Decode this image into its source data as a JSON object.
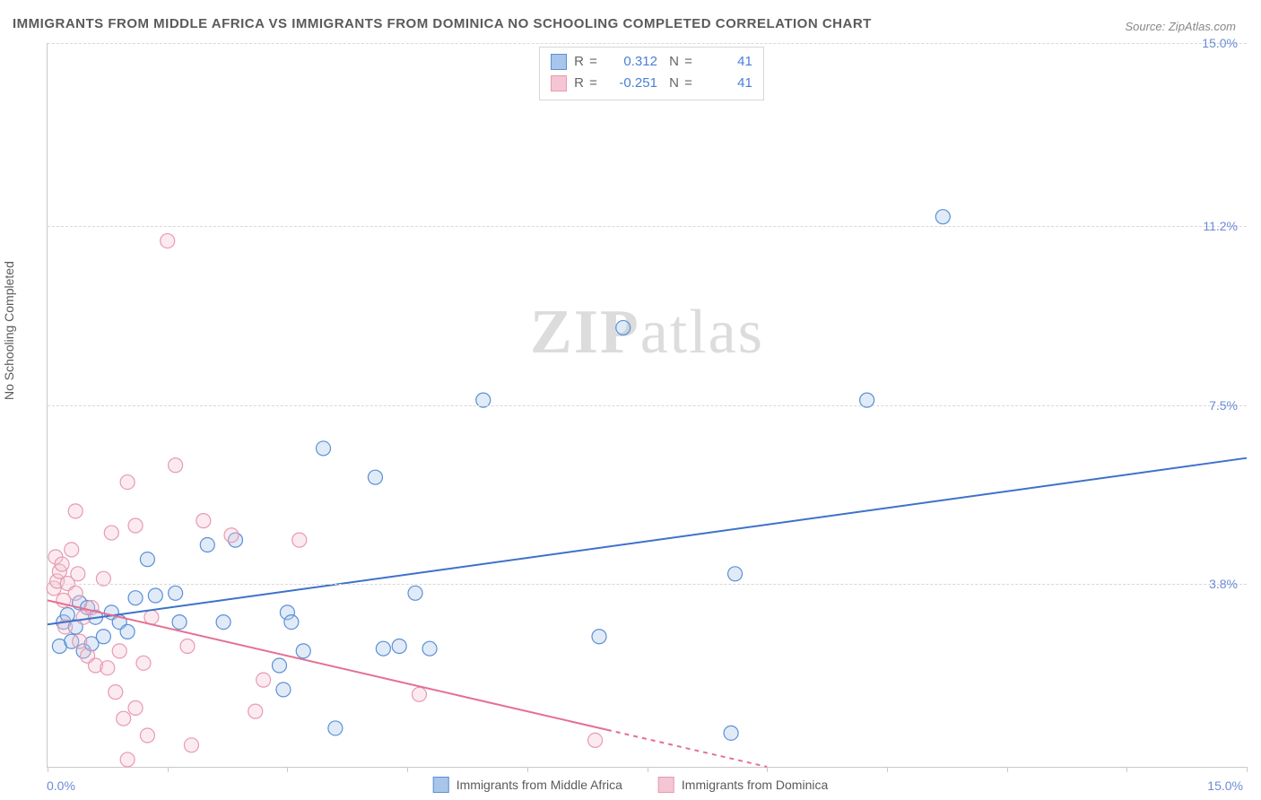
{
  "title": "IMMIGRANTS FROM MIDDLE AFRICA VS IMMIGRANTS FROM DOMINICA NO SCHOOLING COMPLETED CORRELATION CHART",
  "source": "Source: ZipAtlas.com",
  "watermark_text": "ZIPatlas",
  "y_axis_label": "No Schooling Completed",
  "chart": {
    "type": "scatter",
    "background_color": "#ffffff",
    "grid_color": "#d8d8d8",
    "axis_color": "#c9c9c9",
    "tick_label_color": "#6b8bd6",
    "xlim": [
      0,
      15
    ],
    "ylim": [
      0,
      15
    ],
    "x_min_label": "0.0%",
    "x_max_label": "15.0%",
    "y_gridlines": [
      3.8,
      7.5,
      11.2,
      15.0
    ],
    "y_tick_labels": [
      "3.8%",
      "7.5%",
      "11.2%",
      "15.0%"
    ],
    "x_tick_positions": [
      0,
      1.5,
      3.0,
      4.5,
      6.0,
      7.5,
      9.0,
      10.5,
      12.0,
      13.5,
      15.0
    ],
    "marker_radius": 8,
    "marker_fill_opacity": 0.35,
    "marker_stroke_width": 1.2,
    "trend_line_width": 2
  },
  "series": [
    {
      "name": "Immigrants from Middle Africa",
      "color_stroke": "#5b8fd6",
      "color_fill": "#a8c5ea",
      "trend_color": "#3d72c9",
      "r": "0.312",
      "n": "41",
      "trend_start": [
        0.0,
        2.95
      ],
      "trend_end": [
        15.0,
        6.4
      ],
      "trend_dash_after_x": null,
      "points": [
        [
          0.15,
          2.5
        ],
        [
          0.2,
          3.0
        ],
        [
          0.25,
          3.15
        ],
        [
          0.3,
          2.6
        ],
        [
          0.35,
          2.9
        ],
        [
          0.4,
          3.4
        ],
        [
          0.45,
          2.4
        ],
        [
          0.5,
          3.3
        ],
        [
          0.55,
          2.55
        ],
        [
          0.6,
          3.1
        ],
        [
          0.7,
          2.7
        ],
        [
          0.8,
          3.2
        ],
        [
          0.9,
          3.0
        ],
        [
          1.0,
          2.8
        ],
        [
          1.1,
          3.5
        ],
        [
          1.25,
          4.3
        ],
        [
          1.35,
          3.55
        ],
        [
          1.6,
          3.6
        ],
        [
          1.65,
          3.0
        ],
        [
          2.0,
          4.6
        ],
        [
          2.2,
          3.0
        ],
        [
          2.35,
          4.7
        ],
        [
          2.9,
          2.1
        ],
        [
          2.95,
          1.6
        ],
        [
          3.0,
          3.2
        ],
        [
          3.05,
          3.0
        ],
        [
          3.2,
          2.4
        ],
        [
          3.45,
          6.6
        ],
        [
          3.6,
          0.8
        ],
        [
          4.1,
          6.0
        ],
        [
          4.2,
          2.45
        ],
        [
          4.4,
          2.5
        ],
        [
          4.6,
          3.6
        ],
        [
          4.78,
          2.45
        ],
        [
          5.45,
          7.6
        ],
        [
          6.9,
          2.7
        ],
        [
          7.2,
          9.1
        ],
        [
          8.55,
          0.7
        ],
        [
          8.6,
          4.0
        ],
        [
          10.25,
          7.6
        ],
        [
          11.2,
          11.4
        ]
      ]
    },
    {
      "name": "Immigrants from Dominica",
      "color_stroke": "#e79ab1",
      "color_fill": "#f4c6d3",
      "trend_color": "#e56f92",
      "r": "-0.251",
      "n": "41",
      "trend_start": [
        0.0,
        3.45
      ],
      "trend_end": [
        9.0,
        0.0
      ],
      "trend_dash_after_x": 7.0,
      "points": [
        [
          0.08,
          3.7
        ],
        [
          0.1,
          4.35
        ],
        [
          0.12,
          3.85
        ],
        [
          0.15,
          4.05
        ],
        [
          0.18,
          4.2
        ],
        [
          0.2,
          3.45
        ],
        [
          0.22,
          2.9
        ],
        [
          0.25,
          3.8
        ],
        [
          0.3,
          4.5
        ],
        [
          0.35,
          3.6
        ],
        [
          0.35,
          5.3
        ],
        [
          0.38,
          4.0
        ],
        [
          0.4,
          2.6
        ],
        [
          0.45,
          3.1
        ],
        [
          0.5,
          2.3
        ],
        [
          0.55,
          3.3
        ],
        [
          0.6,
          2.1
        ],
        [
          0.7,
          3.9
        ],
        [
          0.75,
          2.05
        ],
        [
          0.8,
          4.85
        ],
        [
          0.85,
          1.55
        ],
        [
          0.9,
          2.4
        ],
        [
          0.95,
          1.0
        ],
        [
          1.0,
          0.15
        ],
        [
          1.0,
          5.9
        ],
        [
          1.1,
          5.0
        ],
        [
          1.1,
          1.22
        ],
        [
          1.2,
          2.15
        ],
        [
          1.25,
          0.65
        ],
        [
          1.3,
          3.1
        ],
        [
          1.5,
          10.9
        ],
        [
          1.6,
          6.25
        ],
        [
          1.75,
          2.5
        ],
        [
          1.8,
          0.45
        ],
        [
          1.95,
          5.1
        ],
        [
          2.3,
          4.8
        ],
        [
          2.6,
          1.15
        ],
        [
          2.7,
          1.8
        ],
        [
          3.15,
          4.7
        ],
        [
          4.65,
          1.5
        ],
        [
          6.85,
          0.55
        ]
      ]
    }
  ],
  "legend_bottom": [
    {
      "label": "Immigrants from Middle Africa",
      "series_index": 0
    },
    {
      "label": "Immigrants from Dominica",
      "series_index": 1
    }
  ]
}
